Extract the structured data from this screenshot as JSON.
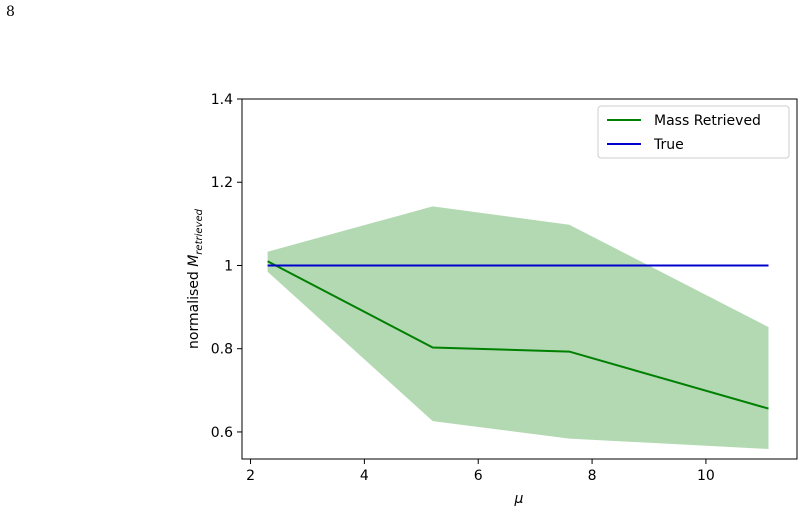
{
  "page": {
    "number": "8"
  },
  "chart_data": {
    "type": "line",
    "x": [
      2.3,
      5.2,
      7.6,
      11.1
    ],
    "xlim": [
      1.85,
      11.6
    ],
    "ylim": [
      0.535,
      1.4
    ],
    "xticks": [
      2,
      4,
      6,
      8,
      10
    ],
    "yticks": [
      0.6,
      0.8,
      1.0,
      1.2,
      1.4
    ],
    "xtick_labels": [
      "2",
      "4",
      "6",
      "8",
      "10"
    ],
    "ytick_labels": [
      "0.6",
      "0.8",
      "1",
      "1.2",
      "1.4"
    ],
    "xlabel": "μ",
    "ylabel_prefix": "normalised ",
    "ylabel_symbol": "M",
    "ylabel_subscript": "retrieved",
    "grid": false,
    "legend_position": "top-right",
    "series": [
      {
        "name": "Mass Retrieved",
        "color": "#008000",
        "values": [
          1.01,
          0.803,
          0.793,
          0.656
        ],
        "band_lower": [
          0.985,
          0.626,
          0.584,
          0.559
        ],
        "band_upper": [
          1.033,
          1.142,
          1.098,
          0.852
        ],
        "band_color": "#b3d9b3"
      },
      {
        "name": "True",
        "color": "#0000cc",
        "values": [
          1.0,
          1.0,
          1.0,
          1.0
        ]
      }
    ]
  }
}
